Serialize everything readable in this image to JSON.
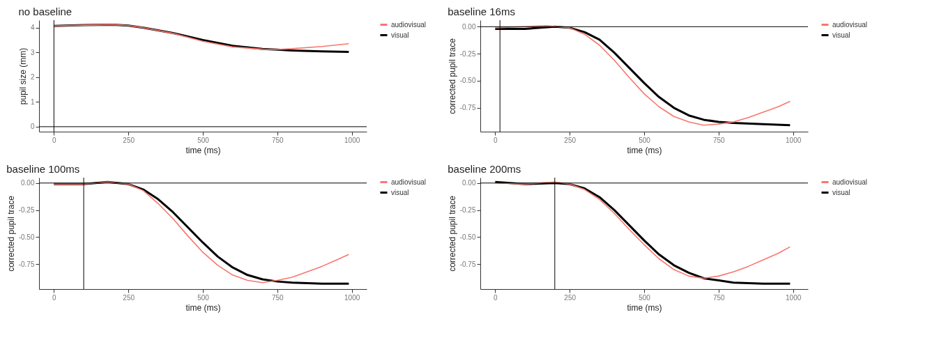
{
  "chart_data": [
    {
      "type": "line",
      "title": "no baseline",
      "xlabel": "time (ms)",
      "ylabel": "pupil size (mm)",
      "xlim": [
        -50,
        1050
      ],
      "xticks": [
        0,
        250,
        500,
        750,
        1000
      ],
      "ylim": [
        -0.2,
        4.3
      ],
      "yticks": [
        0,
        1,
        2,
        3,
        4
      ],
      "grid": false,
      "legend": "right",
      "ref_lines": [
        {
          "axis": "x",
          "value": 0
        },
        {
          "axis": "y",
          "value": 0
        }
      ],
      "series": [
        {
          "name": "audiovisual",
          "color": "#f8766d",
          "x": [
            0,
            100,
            200,
            250,
            300,
            400,
            500,
            600,
            700,
            750,
            800,
            900,
            990
          ],
          "values": [
            4.07,
            4.1,
            4.12,
            4.08,
            4.0,
            3.77,
            3.45,
            3.22,
            3.13,
            3.12,
            3.15,
            3.24,
            3.35
          ]
        },
        {
          "name": "visual",
          "color": "#000000",
          "x": [
            0,
            100,
            200,
            250,
            300,
            400,
            500,
            600,
            700,
            750,
            800,
            900,
            990
          ],
          "values": [
            4.07,
            4.1,
            4.12,
            4.08,
            4.0,
            3.78,
            3.5,
            3.27,
            3.14,
            3.11,
            3.08,
            3.04,
            3.02
          ]
        }
      ]
    },
    {
      "type": "line",
      "title": "baseline 16ms",
      "xlabel": "time (ms)",
      "ylabel": "corrected pupil trace",
      "xlim": [
        -50,
        1050
      ],
      "xticks": [
        0,
        250,
        500,
        750,
        1000
      ],
      "ylim": [
        -0.97,
        0.06
      ],
      "yticks": [
        {
          "value": 0,
          "label": "0.00"
        },
        {
          "value": -0.25,
          "label": "-0.25"
        },
        {
          "value": -0.5,
          "label": "-0.50"
        },
        {
          "value": -0.75,
          "label": "-0.75"
        }
      ],
      "grid": false,
      "legend": "right",
      "ref_lines": [
        {
          "axis": "x",
          "value": 16
        },
        {
          "axis": "y",
          "value": 0
        }
      ],
      "series": [
        {
          "name": "audiovisual",
          "color": "#f8766d",
          "x": [
            0,
            100,
            170,
            250,
            300,
            350,
            400,
            450,
            500,
            550,
            600,
            650,
            700,
            750,
            800,
            850,
            900,
            950,
            990
          ],
          "values": [
            -0.01,
            0.0,
            0.01,
            -0.01,
            -0.07,
            -0.17,
            -0.31,
            -0.47,
            -0.62,
            -0.74,
            -0.83,
            -0.88,
            -0.91,
            -0.9,
            -0.88,
            -0.84,
            -0.79,
            -0.74,
            -0.69
          ]
        },
        {
          "name": "visual",
          "color": "#000000",
          "x": [
            0,
            100,
            200,
            250,
            300,
            350,
            400,
            450,
            500,
            550,
            600,
            650,
            700,
            750,
            800,
            900,
            990
          ],
          "values": [
            -0.02,
            -0.02,
            0.0,
            -0.01,
            -0.05,
            -0.12,
            -0.24,
            -0.38,
            -0.52,
            -0.65,
            -0.75,
            -0.82,
            -0.86,
            -0.88,
            -0.89,
            -0.9,
            -0.91
          ]
        }
      ]
    },
    {
      "type": "line",
      "title": "baseline 100ms",
      "xlabel": "time (ms)",
      "ylabel": "corrected pupil trace",
      "xlim": [
        -50,
        1050
      ],
      "xticks": [
        0,
        250,
        500,
        750,
        1000
      ],
      "ylim": [
        -0.98,
        0.05
      ],
      "yticks": [
        {
          "value": 0,
          "label": "0.00"
        },
        {
          "value": -0.25,
          "label": "-0.25"
        },
        {
          "value": -0.5,
          "label": "-0.50"
        },
        {
          "value": -0.75,
          "label": "-0.75"
        }
      ],
      "grid": false,
      "legend": "right",
      "ref_lines": [
        {
          "axis": "x",
          "value": 100
        },
        {
          "axis": "y",
          "value": 0
        }
      ],
      "series": [
        {
          "name": "audiovisual",
          "color": "#f8766d",
          "x": [
            0,
            100,
            180,
            250,
            300,
            350,
            400,
            450,
            500,
            550,
            600,
            650,
            700,
            750,
            800,
            850,
            900,
            950,
            990
          ],
          "values": [
            -0.01,
            -0.01,
            0.01,
            -0.01,
            -0.07,
            -0.19,
            -0.33,
            -0.49,
            -0.64,
            -0.76,
            -0.85,
            -0.9,
            -0.92,
            -0.9,
            -0.87,
            -0.82,
            -0.77,
            -0.71,
            -0.66
          ]
        },
        {
          "name": "visual",
          "color": "#000000",
          "x": [
            0,
            100,
            180,
            250,
            300,
            350,
            400,
            450,
            500,
            550,
            600,
            650,
            700,
            750,
            800,
            900,
            990
          ],
          "values": [
            -0.01,
            -0.01,
            0.01,
            -0.01,
            -0.06,
            -0.15,
            -0.27,
            -0.41,
            -0.55,
            -0.68,
            -0.78,
            -0.85,
            -0.89,
            -0.91,
            -0.92,
            -0.93,
            -0.93
          ]
        }
      ]
    },
    {
      "type": "line",
      "title": "baseline 200ms",
      "xlabel": "time (ms)",
      "ylabel": "corrected pupil trace",
      "xlim": [
        -50,
        1050
      ],
      "xticks": [
        0,
        250,
        500,
        750,
        1000
      ],
      "ylim": [
        -0.98,
        0.05
      ],
      "yticks": [
        {
          "value": 0,
          "label": "0.00"
        },
        {
          "value": -0.25,
          "label": "-0.25"
        },
        {
          "value": -0.5,
          "label": "-0.50"
        },
        {
          "value": -0.75,
          "label": "-0.75"
        }
      ],
      "grid": false,
      "legend": "right",
      "ref_lines": [
        {
          "axis": "x",
          "value": 200
        },
        {
          "axis": "y",
          "value": 0
        }
      ],
      "series": [
        {
          "name": "audiovisual",
          "color": "#f8766d",
          "x": [
            0,
            100,
            200,
            250,
            300,
            350,
            400,
            450,
            500,
            550,
            600,
            650,
            700,
            750,
            800,
            850,
            900,
            950,
            990
          ],
          "values": [
            0.0,
            -0.01,
            0.01,
            -0.01,
            -0.06,
            -0.15,
            -0.28,
            -0.43,
            -0.57,
            -0.7,
            -0.8,
            -0.86,
            -0.88,
            -0.86,
            -0.82,
            -0.77,
            -0.71,
            -0.65,
            -0.59
          ]
        },
        {
          "name": "visual",
          "color": "#000000",
          "x": [
            0,
            50,
            100,
            200,
            250,
            300,
            350,
            400,
            450,
            500,
            550,
            600,
            650,
            700,
            750,
            800,
            900,
            990
          ],
          "values": [
            0.01,
            0.0,
            -0.01,
            0.0,
            -0.01,
            -0.05,
            -0.13,
            -0.25,
            -0.39,
            -0.53,
            -0.66,
            -0.76,
            -0.83,
            -0.88,
            -0.9,
            -0.92,
            -0.93,
            -0.93
          ]
        }
      ]
    }
  ]
}
